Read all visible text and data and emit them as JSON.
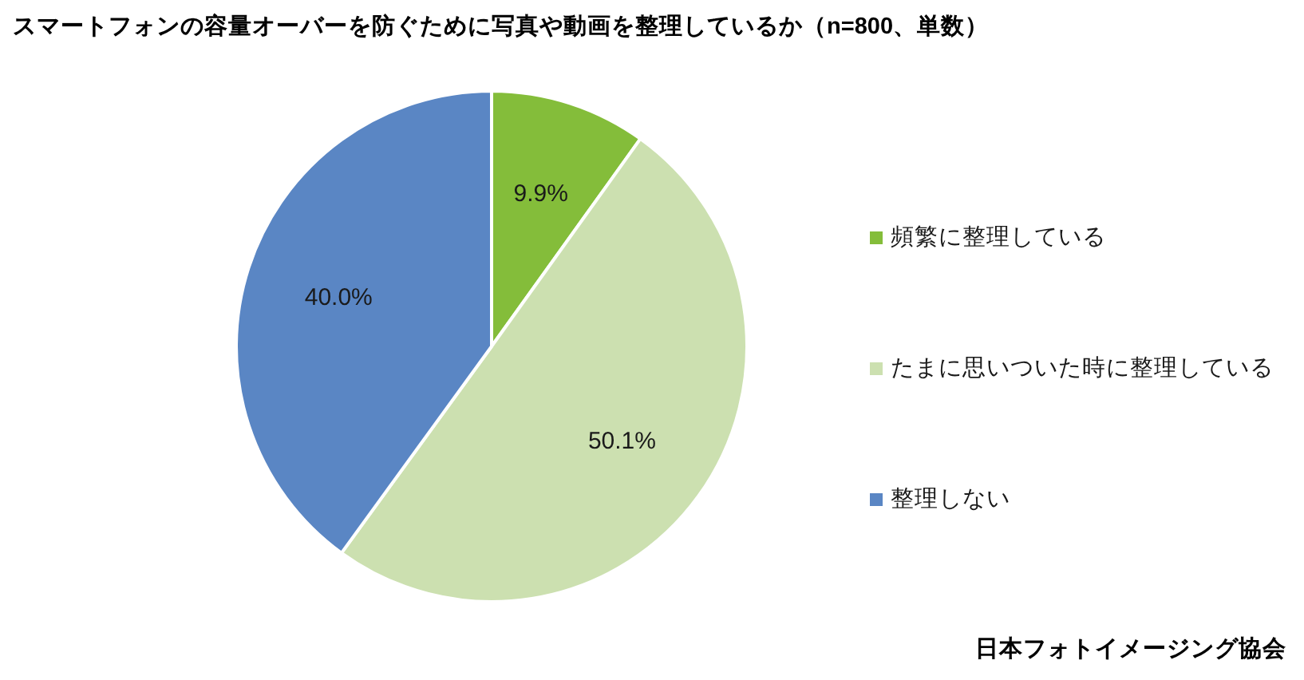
{
  "chart_data": {
    "type": "pie",
    "title": "スマートフォンの容量オーバーを防ぐために写真や動画を整理しているか（n=800、単数）",
    "categories": [
      "頻繁に整理している",
      "たまに思いついた時に整理している",
      "整理しない"
    ],
    "values": [
      9.9,
      50.1,
      40.0
    ],
    "value_labels": [
      "9.9%",
      "50.1%",
      "40.0%"
    ],
    "colors": [
      "#84bd3a",
      "#cce0b0",
      "#5a86c4"
    ],
    "legend": "right",
    "annotations": [
      "日本フォトイメージング協会"
    ]
  }
}
